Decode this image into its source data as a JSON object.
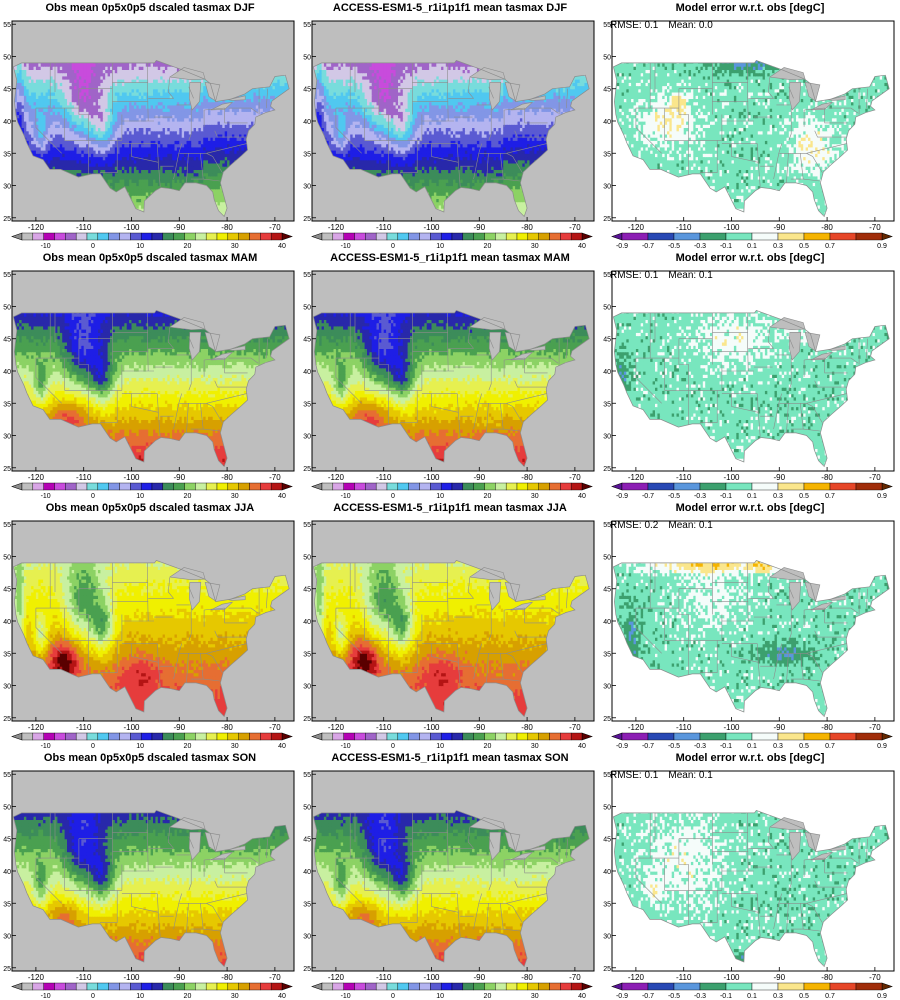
{
  "rows": [
    {
      "season": "DJF",
      "panels": [
        {
          "title": "Obs mean 0p5x0p5 dscaled tasmax DJF",
          "kind": "mean"
        },
        {
          "title": "ACCESS-ESM1-5_r1i1p1f1 mean tasmax DJF",
          "kind": "mean"
        },
        {
          "title": "Model error w.r.t. obs [degC]",
          "kind": "error",
          "rmse_label": "RMSE: 0.1",
          "mean_label": "Mean: 0.0"
        }
      ]
    },
    {
      "season": "MAM",
      "panels": [
        {
          "title": "Obs mean 0p5x0p5 dscaled tasmax MAM",
          "kind": "mean"
        },
        {
          "title": "ACCESS-ESM1-5_r1i1p1f1 mean tasmax MAM",
          "kind": "mean"
        },
        {
          "title": "Model error w.r.t. obs [degC]",
          "kind": "error",
          "rmse_label": "RMSE: 0.1",
          "mean_label": "Mean: 0.1"
        }
      ]
    },
    {
      "season": "JJA",
      "panels": [
        {
          "title": "Obs mean 0p5x0p5 dscaled tasmax JJA",
          "kind": "mean"
        },
        {
          "title": "ACCESS-ESM1-5_r1i1p1f1 mean tasmax JJA",
          "kind": "mean"
        },
        {
          "title": "Model error w.r.t. obs [degC]",
          "kind": "error",
          "rmse_label": "RMSE: 0.2",
          "mean_label": "Mean: 0.1"
        }
      ]
    },
    {
      "season": "SON",
      "panels": [
        {
          "title": "Obs mean 0p5x0p5 dscaled tasmax SON",
          "kind": "mean"
        },
        {
          "title": "ACCESS-ESM1-5_r1i1p1f1 mean tasmax SON",
          "kind": "mean"
        },
        {
          "title": "Model error w.r.t. obs [degC]",
          "kind": "error",
          "rmse_label": "RMSE: 0.1",
          "mean_label": "Mean: 0.1"
        }
      ]
    }
  ],
  "chart_data": {
    "type": "heatmap",
    "map_region": "contiguous United States",
    "x_ticks": [
      "-120",
      "-110",
      "-100",
      "-90",
      "-80",
      "-70"
    ],
    "x_tick_values": [
      -120,
      -110,
      -100,
      -90,
      -80,
      -70
    ],
    "y_ticks": [
      "25",
      "30",
      "35",
      "40",
      "45",
      "50",
      "55"
    ],
    "y_tick_values": [
      25,
      30,
      35,
      40,
      45,
      50,
      55
    ],
    "xlim": [
      -125,
      -66
    ],
    "ylim": [
      24.5,
      55.5
    ],
    "ocean_color": "#bebebe",
    "land_outline_color": "#8c8c8c",
    "mean_colorbar": {
      "units": "degC",
      "tick_labels": [
        "-10",
        "0",
        "10",
        "20",
        "30",
        "40"
      ],
      "tick_values": [
        -10,
        0,
        10,
        20,
        30,
        40
      ],
      "range": [
        -15,
        40
      ],
      "step": 2.5,
      "under_color": "#8c8c8c",
      "over_color": "#5a0000",
      "colors": [
        "#bfbfbf",
        "#d9a6e6",
        "#b400b4",
        "#c84bdc",
        "#a064c8",
        "#d2c8e6",
        "#78dcdc",
        "#50c8f0",
        "#8296e6",
        "#b4b4f0",
        "#5a5ad2",
        "#1e1ee6",
        "#2828aa",
        "#3c8c5a",
        "#4aa050",
        "#8cd264",
        "#c8f0a0",
        "#e6f050",
        "#f0f000",
        "#e6c800",
        "#d7a000",
        "#e66e32",
        "#e63c3c",
        "#b41414"
      ]
    },
    "error_colorbar": {
      "units": "degC",
      "tick_labels": [
        "-0.9",
        "-0.7",
        "-0.5",
        "-0.3",
        "-0.1",
        "0.1",
        "0.3",
        "0.5",
        "0.7",
        "0.9"
      ],
      "tick_values": [
        -0.9,
        -0.7,
        -0.5,
        -0.3,
        -0.1,
        0.1,
        0.3,
        0.5,
        0.7,
        0.9
      ],
      "under_color": "#5a1496",
      "over_color": "#642800",
      "colors": [
        "#8c1eb4",
        "#2848b4",
        "#5a96dc",
        "#3ca06e",
        "#78e6be",
        "#f5fcfa",
        "#fae68c",
        "#f5b400",
        "#e64628",
        "#a02d0a"
      ]
    },
    "series": [
      {
        "season": "DJF",
        "field": "obs_mean",
        "color_bands_north_to_south": [
          "#b400b4",
          "#a064c8",
          "#78dcdc",
          "#b4b4f0",
          "#8296e6",
          "#5a5ad2",
          "#1e1ee6",
          "#2828aa",
          "#3c8c5a",
          "#8cd264",
          "#c8f0a0"
        ]
      },
      {
        "season": "DJF",
        "field": "model_mean",
        "color_bands_north_to_south": [
          "#b400b4",
          "#a064c8",
          "#78dcdc",
          "#b4b4f0",
          "#8296e6",
          "#5a5ad2",
          "#1e1ee6",
          "#2828aa",
          "#3c8c5a",
          "#8cd264",
          "#c8f0a0"
        ]
      },
      {
        "season": "DJF",
        "field": "error",
        "rmse": 0.1,
        "mean": 0.0,
        "dominant_colors": [
          "#f5fcfa",
          "#fae68c",
          "#78e6be",
          "#f5b400"
        ]
      },
      {
        "season": "MAM",
        "field": "obs_mean",
        "color_bands_north_to_south": [
          "#5a5ad2",
          "#1e1ee6",
          "#2828aa",
          "#3c8c5a",
          "#8cd264",
          "#e6f050",
          "#e6c800",
          "#d7a000"
        ]
      },
      {
        "season": "MAM",
        "field": "model_mean",
        "color_bands_north_to_south": [
          "#5a5ad2",
          "#1e1ee6",
          "#2828aa",
          "#3c8c5a",
          "#8cd264",
          "#e6f050",
          "#e6c800",
          "#d7a000"
        ]
      },
      {
        "season": "MAM",
        "field": "error",
        "rmse": 0.1,
        "mean": 0.1,
        "dominant_colors": [
          "#f5fcfa",
          "#fae68c",
          "#78e6be"
        ]
      },
      {
        "season": "JJA",
        "field": "obs_mean",
        "color_bands_north_to_south": [
          "#4aa050",
          "#8cd264",
          "#e6f050",
          "#e6c800",
          "#d7a000",
          "#e66e32",
          "#e63c3c",
          "#b41414"
        ]
      },
      {
        "season": "JJA",
        "field": "model_mean",
        "color_bands_north_to_south": [
          "#4aa050",
          "#8cd264",
          "#e6f050",
          "#e6c800",
          "#d7a000",
          "#e66e32",
          "#e63c3c",
          "#b41414"
        ]
      },
      {
        "season": "JJA",
        "field": "error",
        "rmse": 0.2,
        "mean": 0.1,
        "dominant_colors": [
          "#f5fcfa",
          "#fae68c",
          "#f5b400",
          "#e64628",
          "#78e6be"
        ]
      },
      {
        "season": "SON",
        "field": "obs_mean",
        "color_bands_north_to_south": [
          "#8296e6",
          "#5a5ad2",
          "#1e1ee6",
          "#2828aa",
          "#3c8c5a",
          "#4aa050",
          "#8cd264",
          "#e6f050",
          "#e6c800",
          "#d7a000"
        ]
      },
      {
        "season": "SON",
        "field": "model_mean",
        "color_bands_north_to_south": [
          "#8296e6",
          "#5a5ad2",
          "#1e1ee6",
          "#2828aa",
          "#3c8c5a",
          "#4aa050",
          "#8cd264",
          "#e6f050",
          "#e6c800",
          "#d7a000"
        ]
      },
      {
        "season": "SON",
        "field": "error",
        "rmse": 0.1,
        "mean": 0.1,
        "dominant_colors": [
          "#f5fcfa",
          "#fae68c",
          "#f5b400",
          "#78e6be"
        ]
      }
    ]
  }
}
